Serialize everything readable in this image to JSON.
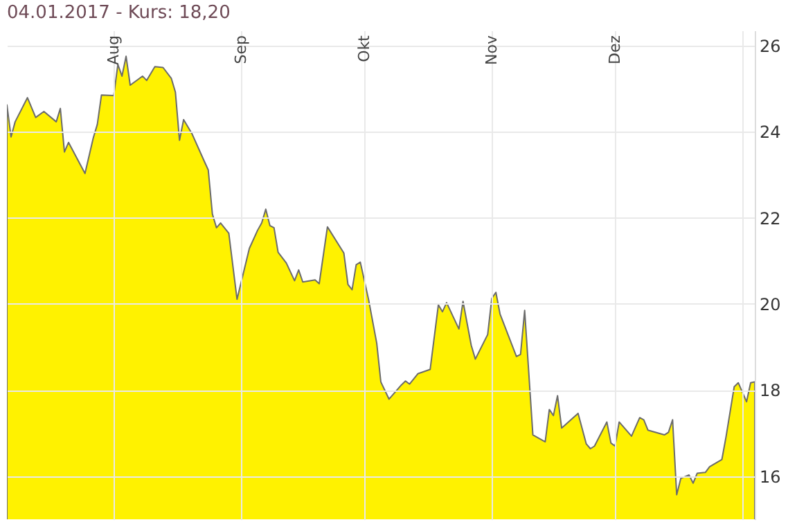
{
  "chart_data": {
    "type": "area",
    "title": "04.01.2017  -  Kurs: 18,20",
    "x": [
      "2016-07-06",
      "2016-07-07",
      "2016-07-08",
      "2016-07-11",
      "2016-07-13",
      "2016-07-15",
      "2016-07-18",
      "2016-07-19",
      "2016-07-20",
      "2016-07-21",
      "2016-07-25",
      "2016-07-27",
      "2016-07-28",
      "2016-07-29",
      "2016-08-01",
      "2016-08-02",
      "2016-08-03",
      "2016-08-04",
      "2016-08-05",
      "2016-08-08",
      "2016-08-09",
      "2016-08-11",
      "2016-08-13",
      "2016-08-15",
      "2016-08-16",
      "2016-08-17",
      "2016-08-18",
      "2016-08-20",
      "2016-08-23",
      "2016-08-24",
      "2016-08-25",
      "2016-08-26",
      "2016-08-27",
      "2016-08-29",
      "2016-08-31",
      "2016-09-03",
      "2016-09-05",
      "2016-09-06",
      "2016-09-07",
      "2016-09-08",
      "2016-09-09",
      "2016-09-10",
      "2016-09-12",
      "2016-09-14",
      "2016-09-15",
      "2016-09-16",
      "2016-09-19",
      "2016-09-20",
      "2016-09-22",
      "2016-09-26",
      "2016-09-27",
      "2016-09-28",
      "2016-09-29",
      "2016-09-30",
      "2016-10-02",
      "2016-10-04",
      "2016-10-05",
      "2016-10-07",
      "2016-10-10",
      "2016-10-11",
      "2016-10-12",
      "2016-10-14",
      "2016-10-17",
      "2016-10-19",
      "2016-10-20",
      "2016-10-21",
      "2016-10-24",
      "2016-10-25",
      "2016-10-27",
      "2016-10-28",
      "2016-10-31",
      "2016-11-01",
      "2016-11-02",
      "2016-11-03",
      "2016-11-07",
      "2016-11-08",
      "2016-11-09",
      "2016-11-11",
      "2016-11-14",
      "2016-11-15",
      "2016-11-16",
      "2016-11-17",
      "2016-11-18",
      "2016-11-22",
      "2016-11-24",
      "2016-11-25",
      "2016-11-26",
      "2016-11-29",
      "2016-11-30",
      "2016-12-01",
      "2016-12-02",
      "2016-12-05",
      "2016-12-07",
      "2016-12-08",
      "2016-12-09",
      "2016-12-13",
      "2016-12-14",
      "2016-12-15",
      "2016-12-16",
      "2016-12-17",
      "2016-12-19",
      "2016-12-20",
      "2016-12-21",
      "2016-12-23",
      "2016-12-24",
      "2016-12-27",
      "2016-12-28",
      "2016-12-30",
      "2016-12-31",
      "2017-01-02",
      "2017-01-03",
      "2017-01-04"
    ],
    "series": [
      {
        "color": "#fff200",
        "values": [
          24.62,
          23.88,
          24.23,
          24.79,
          24.33,
          24.47,
          24.23,
          24.54,
          23.53,
          23.75,
          23.03,
          23.85,
          24.17,
          24.85,
          24.84,
          25.56,
          25.29,
          25.75,
          25.08,
          25.29,
          25.19,
          25.51,
          25.49,
          25.24,
          24.92,
          23.8,
          24.28,
          23.96,
          23.32,
          23.11,
          22.09,
          21.77,
          21.88,
          21.64,
          20.11,
          21.29,
          21.71,
          21.88,
          22.2,
          21.82,
          21.77,
          21.2,
          20.95,
          20.54,
          20.79,
          20.51,
          20.56,
          20.47,
          21.79,
          21.18,
          20.45,
          20.33,
          20.91,
          20.97,
          20.11,
          19.09,
          18.19,
          17.79,
          18.12,
          18.21,
          18.14,
          18.38,
          18.48,
          19.98,
          19.82,
          20.03,
          19.42,
          20.06,
          19.04,
          18.72,
          19.29,
          20.13,
          20.27,
          19.77,
          18.78,
          18.83,
          19.85,
          16.96,
          16.8,
          17.55,
          17.41,
          17.87,
          17.12,
          17.46,
          16.75,
          16.64,
          16.7,
          17.26,
          16.77,
          16.7,
          17.26,
          16.93,
          17.36,
          17.31,
          17.07,
          16.96,
          17.02,
          17.31,
          15.57,
          15.95,
          16.03,
          15.84,
          16.07,
          16.09,
          16.22,
          16.39,
          16.91,
          18.08,
          18.17,
          17.73,
          18.17,
          18.19
        ]
      }
    ],
    "xlim": [
      "2016-07-06",
      "2017-01-04"
    ],
    "xticks": [
      {
        "value": "2016-08-01",
        "label": "Aug"
      },
      {
        "value": "2016-09-01",
        "label": "Sep"
      },
      {
        "value": "2016-10-01",
        "label": "Okt"
      },
      {
        "value": "2016-11-01",
        "label": "Nov"
      },
      {
        "value": "2016-12-01",
        "label": "Dez"
      },
      {
        "value": "2017-01-01",
        "label": null
      }
    ],
    "ylim": [
      15,
      26.35
    ],
    "yticks": [
      16,
      18,
      20,
      22,
      24,
      26
    ],
    "grid": true
  }
}
